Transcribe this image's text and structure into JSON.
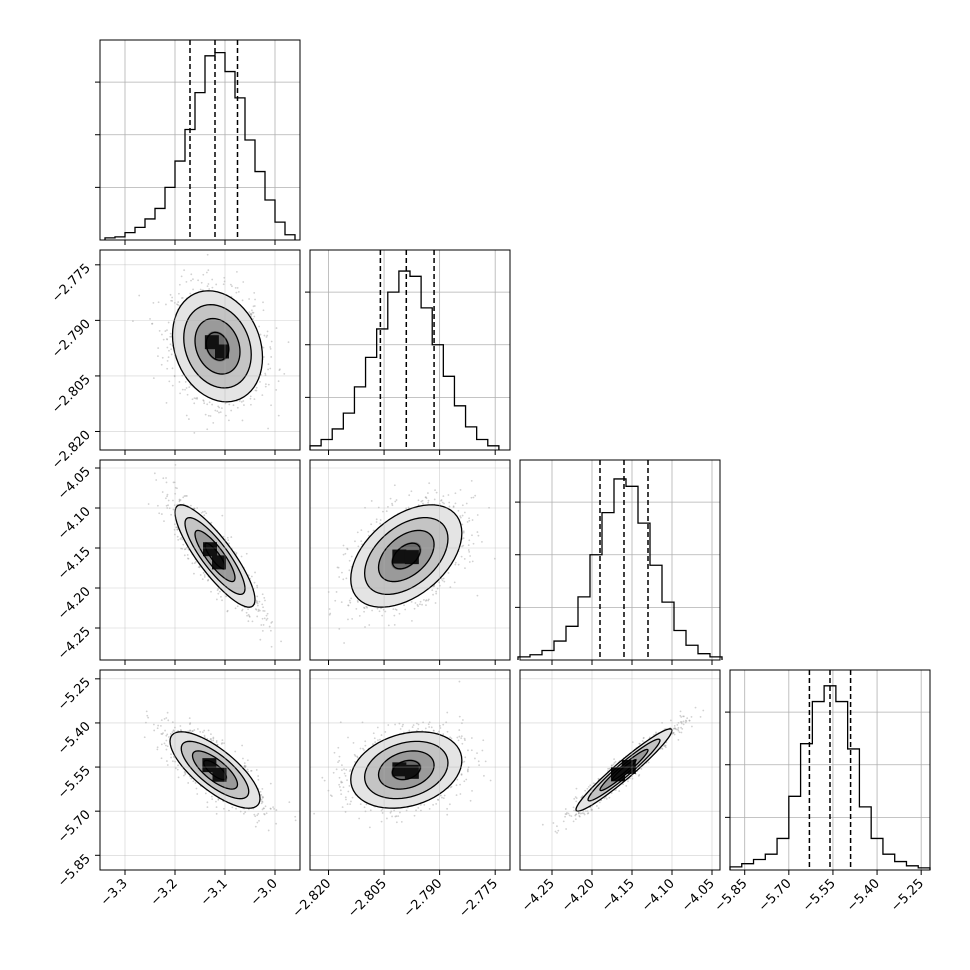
{
  "chart_data": {
    "type": "corner",
    "variables": [
      {
        "range": [
          -3.35,
          -2.95
        ],
        "ticks": [
          -3.3,
          -3.2,
          -3.1,
          -3.0
        ],
        "tick_labels": [
          "−3.3",
          "−3.2",
          "−3.1",
          "−3.0"
        ],
        "quantiles": [
          -3.17,
          -3.12,
          -3.075
        ],
        "hist_bins": [
          [
            -3.33,
            2
          ],
          [
            -3.31,
            3
          ],
          [
            -3.29,
            7
          ],
          [
            -3.27,
            12
          ],
          [
            -3.25,
            20
          ],
          [
            -3.23,
            30
          ],
          [
            -3.21,
            50
          ],
          [
            -3.19,
            75
          ],
          [
            -3.17,
            105
          ],
          [
            -3.15,
            140
          ],
          [
            -3.13,
            175
          ],
          [
            -3.11,
            178
          ],
          [
            -3.09,
            160
          ],
          [
            -3.07,
            135
          ],
          [
            -3.05,
            95
          ],
          [
            -3.03,
            65
          ],
          [
            -3.01,
            38
          ],
          [
            -2.99,
            17
          ],
          [
            -2.97,
            5
          ]
        ]
      },
      {
        "range": [
          -2.825,
          -2.771
        ],
        "ticks": [
          -2.82,
          -2.805,
          -2.79,
          -2.775
        ],
        "tick_labels": [
          "−2.820",
          "−2.805",
          "−2.790",
          "−2.775"
        ],
        "quantiles": [
          -2.806,
          -2.799,
          -2.7915
        ],
        "hist_bins": [
          [
            -2.8235,
            4
          ],
          [
            -2.8205,
            10
          ],
          [
            -2.8175,
            20
          ],
          [
            -2.8145,
            35
          ],
          [
            -2.8115,
            60
          ],
          [
            -2.8085,
            88
          ],
          [
            -2.8055,
            115
          ],
          [
            -2.8025,
            150
          ],
          [
            -2.7995,
            170
          ],
          [
            -2.7965,
            165
          ],
          [
            -2.7935,
            135
          ],
          [
            -2.7905,
            100
          ],
          [
            -2.7875,
            70
          ],
          [
            -2.7845,
            42
          ],
          [
            -2.7815,
            22
          ],
          [
            -2.7785,
            10
          ],
          [
            -2.7755,
            4
          ]
        ]
      },
      {
        "range": [
          -4.29,
          -4.04
        ],
        "ticks": [
          -4.25,
          -4.2,
          -4.15,
          -4.1,
          -4.05
        ],
        "tick_labels": [
          "−4.25",
          "−4.20",
          "−4.15",
          "−4.10",
          "−4.05"
        ],
        "quantiles": [
          -4.19,
          -4.16,
          -4.13
        ],
        "hist_bins": [
          [
            -4.285,
            3
          ],
          [
            -4.27,
            5
          ],
          [
            -4.255,
            9
          ],
          [
            -4.24,
            18
          ],
          [
            -4.225,
            32
          ],
          [
            -4.21,
            60
          ],
          [
            -4.195,
            100
          ],
          [
            -4.18,
            140
          ],
          [
            -4.165,
            172
          ],
          [
            -4.15,
            165
          ],
          [
            -4.135,
            130
          ],
          [
            -4.12,
            90
          ],
          [
            -4.105,
            55
          ],
          [
            -4.09,
            28
          ],
          [
            -4.075,
            14
          ],
          [
            -4.06,
            6
          ],
          [
            -4.045,
            3
          ]
        ]
      },
      {
        "range": [
          -5.9,
          -5.22
        ],
        "ticks": [
          -5.85,
          -5.7,
          -5.55,
          -5.4,
          -5.25
        ],
        "tick_labels": [
          "−5.85",
          "−5.70",
          "−5.55",
          "−5.40",
          "−5.25"
        ],
        "quantiles": [
          -5.63,
          -5.56,
          -5.49
        ],
        "hist_bins": [
          [
            -5.88,
            3
          ],
          [
            -5.84,
            6
          ],
          [
            -5.8,
            10
          ],
          [
            -5.76,
            15
          ],
          [
            -5.72,
            30
          ],
          [
            -5.68,
            70
          ],
          [
            -5.64,
            120
          ],
          [
            -5.6,
            160
          ],
          [
            -5.56,
            175
          ],
          [
            -5.52,
            160
          ],
          [
            -5.48,
            115
          ],
          [
            -5.44,
            60
          ],
          [
            -5.4,
            30
          ],
          [
            -5.36,
            15
          ],
          [
            -5.32,
            8
          ],
          [
            -5.28,
            4
          ],
          [
            -5.24,
            2
          ]
        ]
      }
    ],
    "hist_y_ticks": [
      50,
      100,
      150
    ],
    "pairs": [
      {
        "x": 0,
        "y": 1,
        "mean": [
          -3.115,
          -2.797
        ],
        "sd": [
          0.045,
          0.0075
        ],
        "corr": -0.2
      },
      {
        "x": 0,
        "y": 2,
        "mean": [
          -3.12,
          -4.16
        ],
        "sd": [
          0.04,
          0.032
        ],
        "corr": -0.85
      },
      {
        "x": 1,
        "y": 2,
        "mean": [
          -2.799,
          -4.16
        ],
        "sd": [
          0.0075,
          0.032
        ],
        "corr": 0.45
      },
      {
        "x": 0,
        "y": 3,
        "mean": [
          -3.12,
          -5.56
        ],
        "sd": [
          0.045,
          0.065
        ],
        "corr": -0.75
      },
      {
        "x": 1,
        "y": 3,
        "mean": [
          -2.799,
          -5.56
        ],
        "sd": [
          0.0075,
          0.065
        ],
        "corr": 0.25
      },
      {
        "x": 2,
        "y": 3,
        "mean": [
          -4.16,
          -5.56
        ],
        "sd": [
          0.03,
          0.07
        ],
        "corr": 0.96
      }
    ],
    "contour_levels_sigma": [
      0.5,
      1.0,
      1.5,
      2.0
    ],
    "grid": true,
    "colors": {
      "line": "#000000",
      "grid": "#b0b0b0",
      "points": "#9a9a9a"
    }
  }
}
